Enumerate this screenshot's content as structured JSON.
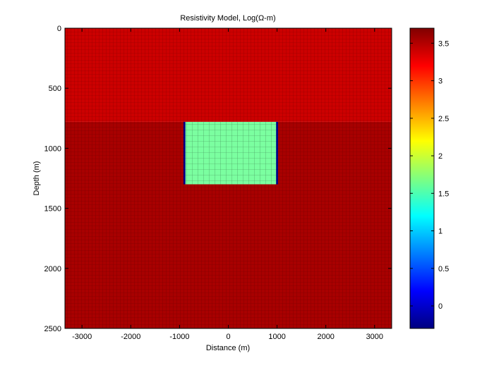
{
  "chart_data": {
    "type": "heatmap",
    "title": "Resistivity Model, Log(Ω-m)",
    "xlabel": "Distance (m)",
    "ylabel": "Depth (m)",
    "xlim": [
      -3350,
      3350
    ],
    "ylim": [
      2500,
      0
    ],
    "y_reversed": true,
    "x_ticks": [
      -3000,
      -2000,
      -1000,
      0,
      1000,
      2000,
      3000
    ],
    "y_ticks": [
      0,
      500,
      1000,
      1500,
      2000,
      2500
    ],
    "colormap": "jet",
    "clim": [
      -0.3,
      3.7
    ],
    "colorbar_ticks": [
      0,
      0.5,
      1,
      1.5,
      2,
      2.5,
      3,
      3.5
    ],
    "grid": "mesh",
    "regions": [
      {
        "x": [
          -3350,
          3350
        ],
        "y": [
          0,
          780
        ],
        "log_resistivity": 3.3,
        "color": "#cc0000"
      },
      {
        "x": [
          -3350,
          3350
        ],
        "y": [
          780,
          2500
        ],
        "log_resistivity": 3.6,
        "color": "#a80000"
      },
      {
        "x": [
          -900,
          1000
        ],
        "y": [
          780,
          1300
        ],
        "log_resistivity": 1.8,
        "color": "#7bffa0"
      },
      {
        "x": [
          -920,
          -880
        ],
        "y": [
          780,
          1300
        ],
        "log_resistivity": -0.2,
        "color": "#000088"
      },
      {
        "x": [
          980,
          1020
        ],
        "y": [
          780,
          1300
        ],
        "log_resistivity": -0.2,
        "color": "#000088"
      }
    ]
  }
}
